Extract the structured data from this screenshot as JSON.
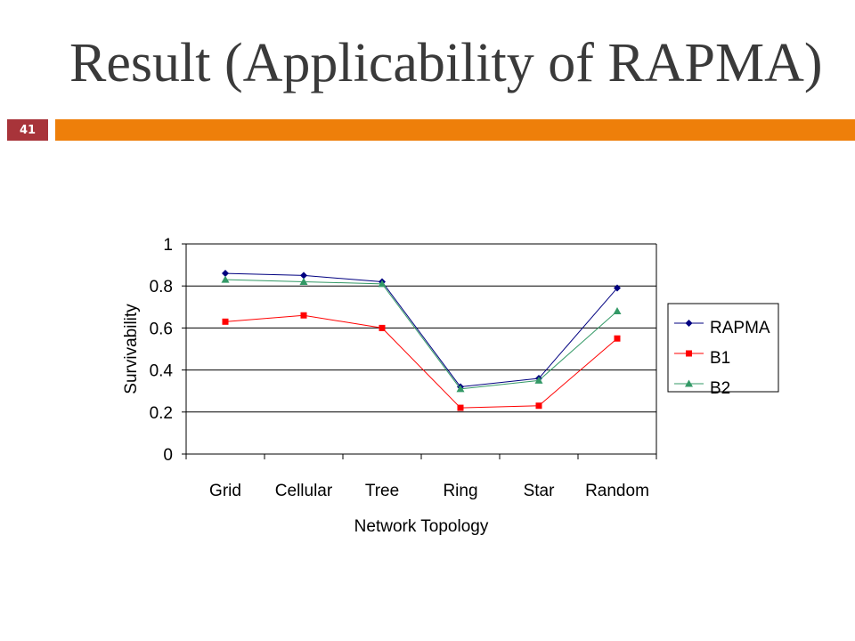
{
  "slide": {
    "title": "Result (Applicability of RAPMA)",
    "number": "41",
    "colors": {
      "header_bar": "#ee7f0a",
      "number_badge": "#a8343a"
    }
  },
  "chart_data": {
    "type": "line",
    "xlabel": "Network Topology",
    "ylabel": "Survivability",
    "categories": [
      "Grid",
      "Cellular",
      "Tree",
      "Ring",
      "Star",
      "Random"
    ],
    "ylim": [
      0,
      1
    ],
    "yticks": [
      "0",
      "0.2",
      "0.4",
      "0.6",
      "0.8",
      "1"
    ],
    "grid": true,
    "legend_position": "right",
    "series": [
      {
        "name": "RAPMA",
        "color": "#000080",
        "marker": "diamond",
        "values": [
          0.86,
          0.85,
          0.82,
          0.32,
          0.36,
          0.79
        ]
      },
      {
        "name": "B1",
        "color": "#ff0000",
        "marker": "square",
        "values": [
          0.63,
          0.66,
          0.6,
          0.22,
          0.23,
          0.55
        ]
      },
      {
        "name": "B2",
        "color": "#339966",
        "marker": "triangle",
        "values": [
          0.83,
          0.82,
          0.81,
          0.31,
          0.35,
          0.68
        ]
      }
    ]
  }
}
